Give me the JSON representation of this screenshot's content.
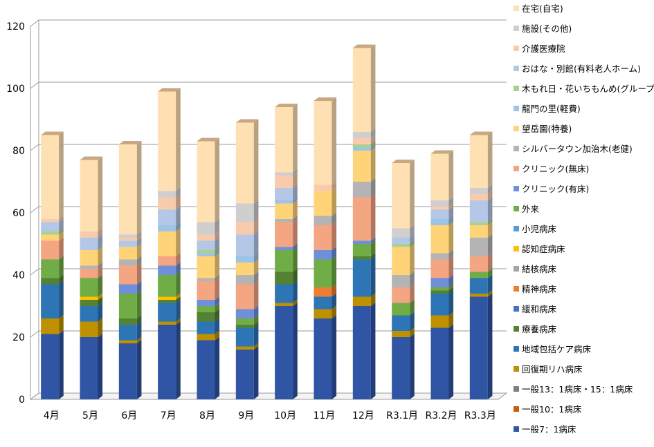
{
  "chart_data": {
    "type": "bar",
    "stacked": true,
    "three_d": true,
    "categories": [
      "4月",
      "5月",
      "6月",
      "7月",
      "8月",
      "9月",
      "10月",
      "11月",
      "12月",
      "R3.1月",
      "R3.2月",
      "R3.3月"
    ],
    "ylim": [
      0,
      120
    ],
    "yticks": [
      0,
      20,
      40,
      60,
      80,
      100,
      120
    ],
    "grid": true,
    "legend_position": "right",
    "series": [
      {
        "name": "一般7：1病床",
        "color": "#2f55a4",
        "values": [
          21,
          20,
          18,
          24,
          19,
          16,
          30,
          26,
          30,
          20,
          23,
          33
        ]
      },
      {
        "name": "一般10：1病床",
        "color": "#c55a11",
        "values": [
          0,
          0,
          0,
          0,
          0,
          0,
          0,
          0,
          0,
          0,
          0,
          0
        ]
      },
      {
        "name": "一般13：1病床・15：1病床",
        "color": "#7f7f7f",
        "values": [
          0,
          0,
          0,
          0,
          0,
          0,
          0,
          0,
          0,
          0,
          0,
          0
        ]
      },
      {
        "name": "回復期リハ病床",
        "color": "#bf9000",
        "values": [
          5,
          5,
          1,
          1,
          2,
          1,
          1,
          3,
          3,
          2,
          4,
          1
        ]
      },
      {
        "name": "地域包括ケア病床",
        "color": "#2e75b6",
        "values": [
          11,
          5,
          5,
          6,
          4,
          6,
          6,
          4,
          12,
          5,
          7,
          5
        ]
      },
      {
        "name": "療養病床",
        "color": "#548235",
        "values": [
          2,
          2,
          2,
          1,
          3,
          1,
          4,
          0,
          1,
          0,
          1,
          0
        ]
      },
      {
        "name": "緩和病床",
        "color": "#4472c4",
        "values": [
          0,
          0,
          0,
          0,
          0,
          0,
          0,
          0,
          0,
          0,
          0,
          0
        ]
      },
      {
        "name": "精神病床",
        "color": "#ed7d31",
        "values": [
          0,
          0,
          0,
          0,
          0,
          0,
          0,
          3,
          0,
          0,
          0,
          0
        ]
      },
      {
        "name": "結核病床",
        "color": "#a5a5a5",
        "values": [
          0,
          0,
          0,
          0,
          0,
          0,
          0,
          0,
          0,
          0,
          0,
          0
        ]
      },
      {
        "name": "認知症病床",
        "color": "#ffc000",
        "values": [
          0,
          1,
          0,
          1,
          0,
          0,
          0,
          0,
          0,
          0,
          0,
          0
        ]
      },
      {
        "name": "小児病床",
        "color": "#5b9bd5",
        "values": [
          0,
          0,
          0,
          0,
          0,
          0,
          0,
          0,
          0,
          0,
          0,
          0
        ]
      },
      {
        "name": "外来",
        "color": "#70ad47",
        "values": [
          6,
          6,
          8,
          7,
          2,
          2,
          7,
          9,
          4,
          4,
          1,
          2
        ]
      },
      {
        "name": "クリニック(有床)",
        "color": "#6f8fd8",
        "values": [
          0,
          0,
          3,
          3,
          2,
          3,
          1,
          3,
          1,
          0,
          3,
          0
        ]
      },
      {
        "name": "クリニック(無床)",
        "color": "#f4a582",
        "values": [
          6,
          3,
          6,
          3,
          6,
          8,
          8,
          8,
          14,
          5,
          6,
          5
        ]
      },
      {
        "name": "シルバータウン加治木(老健)",
        "color": "#b4b4b4",
        "values": [
          0,
          1,
          2,
          0,
          1,
          3,
          1,
          3,
          5,
          4,
          2,
          6
        ]
      },
      {
        "name": "望岳園(特養)",
        "color": "#ffd479",
        "values": [
          2,
          5,
          4,
          8,
          7,
          4,
          5,
          8,
          10,
          9,
          9,
          4
        ]
      },
      {
        "name": "龍門の里(軽費)",
        "color": "#9dc3e6",
        "values": [
          0,
          0,
          0,
          2,
          1,
          2,
          1,
          0,
          1,
          0,
          2,
          0
        ]
      },
      {
        "name": "木もれ日・花いちもんめ(グループホーム)",
        "color": "#a9d18e",
        "values": [
          1,
          0,
          0,
          0,
          1,
          0,
          0,
          0,
          1,
          1,
          0,
          1
        ]
      },
      {
        "name": "おはな・別館(有料老人ホーム)",
        "color": "#b4c7e7",
        "values": [
          3,
          4,
          2,
          5,
          3,
          7,
          4,
          0,
          0,
          2,
          3,
          7
        ]
      },
      {
        "name": "介護医療院",
        "color": "#f8cbad",
        "values": [
          1,
          2,
          1,
          4,
          2,
          4,
          4,
          2,
          2,
          0,
          1,
          2
        ]
      },
      {
        "name": "施設(その他)",
        "color": "#d0cece",
        "values": [
          0,
          0,
          1,
          2,
          4,
          6,
          1,
          0,
          2,
          3,
          2,
          2
        ]
      },
      {
        "name": "在宅(自宅)",
        "color": "#ffe0b3",
        "values": [
          27,
          23,
          29,
          32,
          26,
          26,
          21,
          27,
          27,
          21,
          15,
          17
        ]
      }
    ]
  }
}
